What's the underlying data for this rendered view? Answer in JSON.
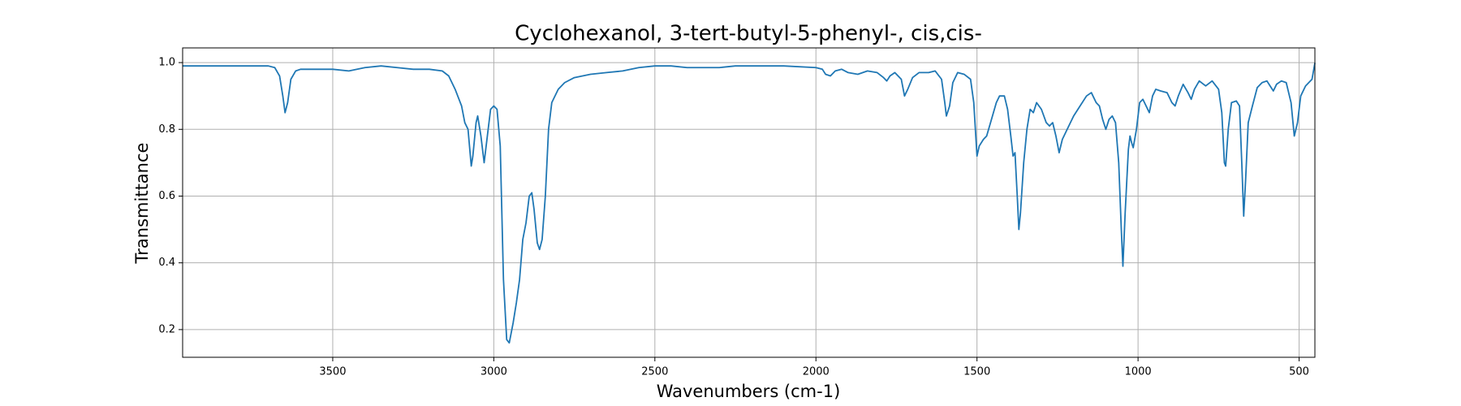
{
  "chart_data": {
    "type": "line",
    "title": "Cyclohexanol, 3-tert-butyl-5-phenyl-, cis,cis-",
    "xlabel": "Wavenumbers (cm-1)",
    "ylabel": "Transmittance",
    "color": "#1f77b4",
    "grid": true,
    "xlim": [
      3966,
      451
    ],
    "ylim": [
      0.117,
      1.044
    ],
    "xticks": [
      3500,
      3000,
      2500,
      2000,
      1500,
      1000,
      500
    ],
    "yticks": [
      0.2,
      0.4,
      0.6,
      0.8,
      {
        "value": 1,
        "label": "1.0"
      }
    ],
    "x": [
      3966,
      3900,
      3800,
      3700,
      3680,
      3665,
      3655,
      3648,
      3640,
      3630,
      3615,
      3600,
      3550,
      3500,
      3450,
      3400,
      3350,
      3300,
      3250,
      3200,
      3160,
      3140,
      3120,
      3100,
      3090,
      3080,
      3070,
      3065,
      3055,
      3050,
      3040,
      3030,
      3020,
      3010,
      3000,
      2990,
      2980,
      2970,
      2960,
      2952,
      2940,
      2930,
      2920,
      2910,
      2900,
      2890,
      2882,
      2875,
      2865,
      2858,
      2850,
      2840,
      2830,
      2820,
      2800,
      2780,
      2750,
      2700,
      2650,
      2600,
      2550,
      2500,
      2450,
      2400,
      2350,
      2300,
      2250,
      2200,
      2100,
      2000,
      1980,
      1970,
      1955,
      1940,
      1920,
      1900,
      1870,
      1840,
      1810,
      1790,
      1780,
      1770,
      1755,
      1735,
      1725,
      1715,
      1700,
      1680,
      1650,
      1630,
      1610,
      1600,
      1595,
      1585,
      1575,
      1560,
      1540,
      1520,
      1510,
      1500,
      1493,
      1480,
      1470,
      1455,
      1440,
      1430,
      1415,
      1405,
      1395,
      1388,
      1382,
      1375,
      1370,
      1365,
      1355,
      1345,
      1335,
      1325,
      1315,
      1300,
      1285,
      1275,
      1265,
      1255,
      1245,
      1235,
      1220,
      1200,
      1180,
      1160,
      1145,
      1130,
      1120,
      1110,
      1100,
      1090,
      1080,
      1070,
      1060,
      1052,
      1047,
      1040,
      1030,
      1025,
      1020,
      1015,
      1005,
      995,
      985,
      975,
      965,
      955,
      945,
      930,
      910,
      895,
      885,
      875,
      860,
      845,
      835,
      825,
      810,
      790,
      770,
      750,
      740,
      732,
      728,
      720,
      710,
      695,
      685,
      678,
      672,
      666,
      658,
      645,
      630,
      615,
      600,
      590,
      580,
      570,
      555,
      540,
      525,
      515,
      505,
      495,
      480,
      470,
      460,
      451
    ],
    "values": [
      0.99,
      0.99,
      0.99,
      0.99,
      0.985,
      0.96,
      0.9,
      0.85,
      0.88,
      0.95,
      0.975,
      0.98,
      0.98,
      0.98,
      0.975,
      0.985,
      0.99,
      0.985,
      0.98,
      0.98,
      0.975,
      0.96,
      0.92,
      0.87,
      0.82,
      0.8,
      0.69,
      0.72,
      0.82,
      0.84,
      0.78,
      0.7,
      0.78,
      0.86,
      0.87,
      0.86,
      0.75,
      0.35,
      0.17,
      0.16,
      0.22,
      0.28,
      0.35,
      0.47,
      0.52,
      0.6,
      0.61,
      0.56,
      0.46,
      0.44,
      0.47,
      0.6,
      0.8,
      0.88,
      0.92,
      0.94,
      0.955,
      0.965,
      0.97,
      0.975,
      0.985,
      0.99,
      0.99,
      0.985,
      0.985,
      0.985,
      0.99,
      0.99,
      0.99,
      0.985,
      0.98,
      0.965,
      0.96,
      0.975,
      0.98,
      0.97,
      0.965,
      0.975,
      0.97,
      0.955,
      0.945,
      0.96,
      0.97,
      0.95,
      0.9,
      0.92,
      0.955,
      0.97,
      0.97,
      0.975,
      0.95,
      0.88,
      0.84,
      0.87,
      0.94,
      0.97,
      0.965,
      0.95,
      0.88,
      0.72,
      0.75,
      0.77,
      0.78,
      0.83,
      0.88,
      0.9,
      0.9,
      0.86,
      0.78,
      0.72,
      0.73,
      0.6,
      0.5,
      0.55,
      0.7,
      0.8,
      0.86,
      0.85,
      0.88,
      0.86,
      0.82,
      0.81,
      0.82,
      0.78,
      0.73,
      0.77,
      0.8,
      0.84,
      0.87,
      0.9,
      0.91,
      0.88,
      0.87,
      0.83,
      0.8,
      0.83,
      0.84,
      0.82,
      0.7,
      0.5,
      0.39,
      0.55,
      0.74,
      0.78,
      0.76,
      0.745,
      0.8,
      0.88,
      0.89,
      0.87,
      0.85,
      0.9,
      0.92,
      0.915,
      0.91,
      0.88,
      0.87,
      0.9,
      0.935,
      0.91,
      0.89,
      0.92,
      0.945,
      0.93,
      0.945,
      0.92,
      0.85,
      0.7,
      0.69,
      0.8,
      0.88,
      0.885,
      0.87,
      0.7,
      0.54,
      0.65,
      0.82,
      0.87,
      0.925,
      0.94,
      0.945,
      0.93,
      0.915,
      0.935,
      0.945,
      0.94,
      0.88,
      0.78,
      0.82,
      0.9,
      0.93,
      0.94,
      0.95,
      0.999
    ]
  }
}
